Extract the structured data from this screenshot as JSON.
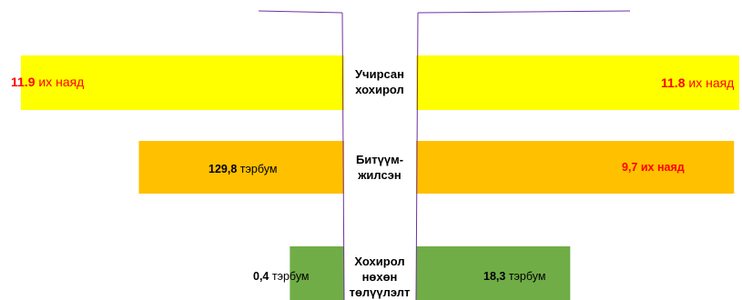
{
  "chart_data": {
    "type": "bar",
    "orientation": "horizontal",
    "layout": "butterfly",
    "categories": [
      "Учирсан хохирол",
      "Битүүм-жилсэн",
      "Хохирол нөхөн төлүүлэлт"
    ],
    "category_lines": [
      [
        "Учирсан",
        "хохирол"
      ],
      [
        "Битүүм-",
        "жилсэн"
      ],
      [
        "Хохирол",
        "нөхөн",
        "төлүүлэлт"
      ]
    ],
    "series": [
      {
        "side": "left",
        "values_billion": [
          11900,
          129.8,
          0.4
        ],
        "labels": [
          {
            "value": "11.9",
            "unit": "их наяд"
          },
          {
            "value": "129,8",
            "unit": "тэрбум"
          },
          {
            "value": "0,4",
            "unit": "тэрбум"
          }
        ]
      },
      {
        "side": "right",
        "values_billion": [
          11800,
          9700,
          18.3
        ],
        "labels": [
          {
            "value": "11.8",
            "unit": "их наяд"
          },
          {
            "value": "9,7 их наяд",
            "unit": ""
          },
          {
            "value": "18,3",
            "unit": "тэрбум"
          }
        ]
      }
    ],
    "scale": "log",
    "colors": {
      "row1": "#ffff00",
      "row2": "#ffc000",
      "row3": "#70ad47",
      "value_red": "#ff0000",
      "divider": "#7030a0"
    }
  }
}
